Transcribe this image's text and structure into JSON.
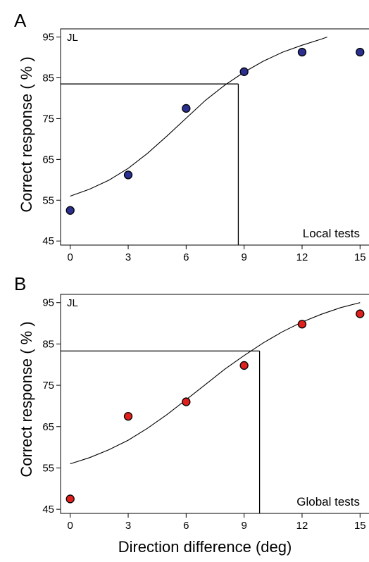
{
  "figure": {
    "xlabel": "Direction difference (deg)"
  },
  "chart_data": [
    {
      "type": "scatter",
      "panel_letter": "A",
      "subject": "JL",
      "test_label": "Local tests",
      "title": "",
      "xlabel": "Direction difference (deg)",
      "ylabel": "Correct response ( % )",
      "xlim": [
        -0.5,
        15.5
      ],
      "ylim": [
        44,
        97
      ],
      "xticks": [
        0,
        3,
        6,
        9,
        12,
        15
      ],
      "yticks": [
        45,
        55,
        65,
        75,
        85,
        95
      ],
      "grid": false,
      "point_color": "#2b2f8f",
      "x": [
        0,
        3,
        6,
        9,
        12,
        15
      ],
      "y": [
        52.5,
        61.2,
        77.5,
        86.5,
        91.3,
        91.3
      ],
      "fit_curve": {
        "x": [
          0,
          1,
          2,
          3,
          4,
          5,
          6,
          7,
          8,
          9,
          10,
          11,
          12,
          13,
          13.3
        ],
        "y": [
          56,
          57.7,
          59.9,
          62.8,
          66.5,
          70.7,
          75.1,
          79.5,
          83.2,
          86.4,
          89.1,
          91.3,
          93,
          94.5,
          95
        ]
      },
      "threshold": {
        "x": 8.7,
        "y": 83.5
      }
    },
    {
      "type": "scatter",
      "panel_letter": "B",
      "subject": "JL",
      "test_label": "Global tests",
      "title": "",
      "xlabel": "Direction difference (deg)",
      "ylabel": "Correct response ( % )",
      "xlim": [
        -0.5,
        15.5
      ],
      "ylim": [
        44,
        97
      ],
      "xticks": [
        0,
        3,
        6,
        9,
        12,
        15
      ],
      "yticks": [
        45,
        55,
        65,
        75,
        85,
        95
      ],
      "grid": false,
      "point_color": "#e0201c",
      "x": [
        0,
        3,
        6,
        9,
        12,
        15
      ],
      "y": [
        47.5,
        67.5,
        71,
        79.8,
        89.8,
        92.3
      ],
      "fit_curve": {
        "x": [
          0,
          1,
          2,
          3,
          4,
          5,
          6,
          7,
          8,
          9,
          10,
          11,
          12,
          13,
          14,
          15
        ],
        "y": [
          56,
          57.5,
          59.4,
          61.7,
          64.6,
          67.9,
          71.5,
          75.2,
          78.9,
          82.2,
          85.3,
          88,
          90.3,
          92.2,
          93.8,
          95
        ]
      },
      "threshold": {
        "x": 9.8,
        "y": 83.3
      }
    }
  ]
}
